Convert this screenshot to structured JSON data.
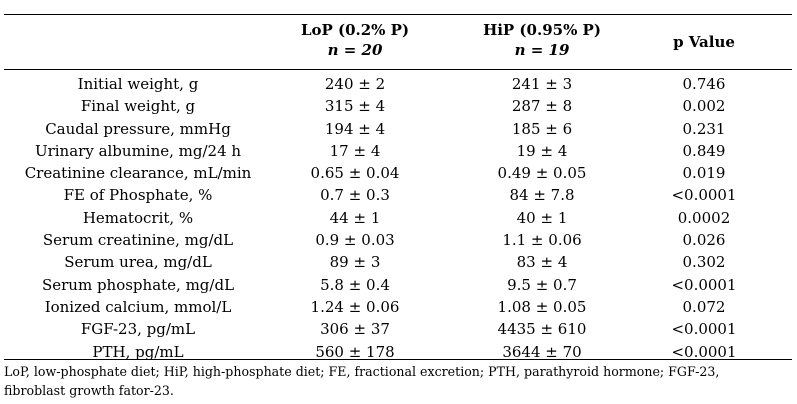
{
  "table": {
    "headers": {
      "lop_title": "LoP (0.2% P)",
      "lop_n": "n = 20",
      "hip_title": "HiP (0.95% P)",
      "hip_n": "n = 19",
      "p_value": "p Value"
    },
    "rows": [
      {
        "label": "Initial weight, g",
        "lop": "240 ± 2",
        "hip": "241 ± 3",
        "p": "0.746"
      },
      {
        "label": "Final weight, g",
        "lop": "315 ± 4",
        "hip": "287 ± 8",
        "p": "0.002"
      },
      {
        "label": "Caudal pressure, mmHg",
        "lop": "194 ± 4",
        "hip": "185 ± 6",
        "p": "0.231"
      },
      {
        "label": "Urinary albumine, mg/24 h",
        "lop": "17 ± 4",
        "hip": "19 ± 4",
        "p": "0.849"
      },
      {
        "label": "Creatinine clearance, mL/min",
        "lop": "0.65 ± 0.04",
        "hip": "0.49 ± 0.05",
        "p": "0.019"
      },
      {
        "label": "FE of Phosphate, %",
        "lop": "0.7 ± 0.3",
        "hip": "84 ± 7.8",
        "p": "<0.0001"
      },
      {
        "label": "Hematocrit, %",
        "lop": "44 ± 1",
        "hip": "40 ± 1",
        "p": "0.0002"
      },
      {
        "label": "Serum creatinine, mg/dL",
        "lop": "0.9 ± 0.03",
        "hip": "1.1 ± 0.06",
        "p": "0.026"
      },
      {
        "label": "Serum urea, mg/dL",
        "lop": "89 ± 3",
        "hip": "83 ± 4",
        "p": "0.302"
      },
      {
        "label": "Serum phosphate, mg/dL",
        "lop": "5.8 ± 0.4",
        "hip": "9.5 ± 0.7",
        "p": "<0.0001"
      },
      {
        "label": "Ionized calcium, mmol/L",
        "lop": "1.24 ± 0.06",
        "hip": "1.08 ± 0.05",
        "p": "0.072"
      },
      {
        "label": "FGF-23, pg/mL",
        "lop": "306 ± 37",
        "hip": "4435 ± 610",
        "p": "<0.0001"
      },
      {
        "label": "PTH, pg/mL",
        "lop": "560 ± 178",
        "hip": "3644 ± 70",
        "p": "<0.0001"
      }
    ]
  },
  "footnote": {
    "line1": "LoP, low-phosphate diet; HiP, high-phosphate diet; FE, fractional excretion; PTH, parathyroid hormone; FGF-23,",
    "line2": "fibroblast growth fator-23."
  }
}
